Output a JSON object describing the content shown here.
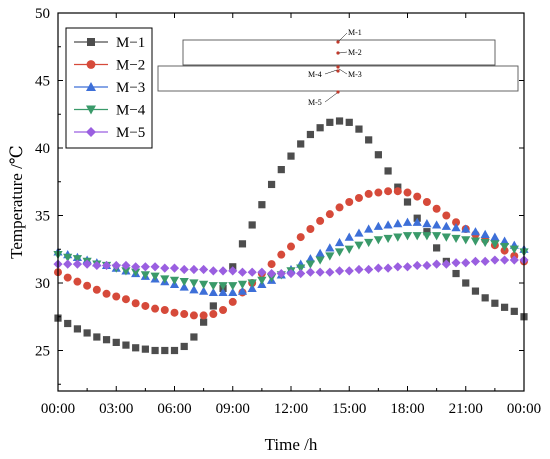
{
  "chart_data": {
    "type": "line",
    "title": "",
    "xlabel": "Time /h",
    "ylabel": "Temperature /℃",
    "x_tick_labels": [
      "00:00",
      "03:00",
      "06:00",
      "09:00",
      "12:00",
      "15:00",
      "18:00",
      "21:00",
      "00:00"
    ],
    "x_ticks": [
      0,
      3,
      6,
      9,
      12,
      15,
      18,
      21,
      24
    ],
    "y_ticks": [
      25,
      30,
      35,
      40,
      45,
      50
    ],
    "xlim": [
      0,
      24
    ],
    "ylim": [
      22,
      50
    ],
    "grid": false,
    "legend_position": "top-left",
    "series": [
      {
        "name": "M−1",
        "marker": "square",
        "color": "#4d4d4d",
        "points": [
          [
            0,
            27.4
          ],
          [
            0.5,
            27.0
          ],
          [
            1,
            26.6
          ],
          [
            1.5,
            26.3
          ],
          [
            2,
            26.0
          ],
          [
            2.5,
            25.8
          ],
          [
            3,
            25.6
          ],
          [
            3.5,
            25.4
          ],
          [
            4,
            25.2
          ],
          [
            4.5,
            25.1
          ],
          [
            5,
            25.0
          ],
          [
            5.5,
            25.0
          ],
          [
            6,
            25.0
          ],
          [
            6.5,
            25.3
          ],
          [
            7,
            26.0
          ],
          [
            7.5,
            27.1
          ],
          [
            8,
            28.3
          ],
          [
            8.5,
            29.6
          ],
          [
            9,
            31.2
          ],
          [
            9.5,
            32.9
          ],
          [
            10,
            34.3
          ],
          [
            10.5,
            35.8
          ],
          [
            11,
            37.3
          ],
          [
            11.5,
            38.4
          ],
          [
            12,
            39.4
          ],
          [
            12.5,
            40.3
          ],
          [
            13,
            41.0
          ],
          [
            13.5,
            41.5
          ],
          [
            14,
            41.9
          ],
          [
            14.5,
            42.0
          ],
          [
            15,
            41.9
          ],
          [
            15.5,
            41.4
          ],
          [
            16,
            40.6
          ],
          [
            16.5,
            39.5
          ],
          [
            17,
            38.3
          ],
          [
            17.5,
            37.1
          ],
          [
            18,
            36.0
          ],
          [
            18.5,
            34.8
          ],
          [
            19,
            33.8
          ],
          [
            19.5,
            32.6
          ],
          [
            20,
            31.6
          ],
          [
            20.5,
            30.7
          ],
          [
            21,
            30.0
          ],
          [
            21.5,
            29.4
          ],
          [
            22,
            28.9
          ],
          [
            22.5,
            28.5
          ],
          [
            23,
            28.2
          ],
          [
            23.5,
            27.9
          ],
          [
            24,
            27.5
          ]
        ]
      },
      {
        "name": "M−2",
        "marker": "circle",
        "color": "#d64a3a",
        "points": [
          [
            0,
            30.8
          ],
          [
            0.5,
            30.4
          ],
          [
            1,
            30.1
          ],
          [
            1.5,
            29.8
          ],
          [
            2,
            29.5
          ],
          [
            2.5,
            29.2
          ],
          [
            3,
            29.0
          ],
          [
            3.5,
            28.8
          ],
          [
            4,
            28.5
          ],
          [
            4.5,
            28.3
          ],
          [
            5,
            28.1
          ],
          [
            5.5,
            28.0
          ],
          [
            6,
            27.8
          ],
          [
            6.5,
            27.7
          ],
          [
            7,
            27.6
          ],
          [
            7.5,
            27.6
          ],
          [
            8,
            27.7
          ],
          [
            8.5,
            28.0
          ],
          [
            9,
            28.6
          ],
          [
            9.5,
            29.3
          ],
          [
            10,
            30.0
          ],
          [
            10.5,
            30.7
          ],
          [
            11,
            31.4
          ],
          [
            11.5,
            32.1
          ],
          [
            12,
            32.7
          ],
          [
            12.5,
            33.4
          ],
          [
            13,
            34.0
          ],
          [
            13.5,
            34.6
          ],
          [
            14,
            35.1
          ],
          [
            14.5,
            35.6
          ],
          [
            15,
            36.0
          ],
          [
            15.5,
            36.3
          ],
          [
            16,
            36.6
          ],
          [
            16.5,
            36.7
          ],
          [
            17,
            36.8
          ],
          [
            17.5,
            36.8
          ],
          [
            18,
            36.7
          ],
          [
            18.5,
            36.4
          ],
          [
            19,
            36.0
          ],
          [
            19.5,
            35.5
          ],
          [
            20,
            35.0
          ],
          [
            20.5,
            34.5
          ],
          [
            21,
            34.0
          ],
          [
            21.5,
            33.6
          ],
          [
            22,
            33.2
          ],
          [
            22.5,
            32.8
          ],
          [
            23,
            32.4
          ],
          [
            23.5,
            32.0
          ],
          [
            24,
            31.6
          ]
        ]
      },
      {
        "name": "M−3",
        "marker": "triangle-up",
        "color": "#3d6fd8",
        "points": [
          [
            0,
            32.3
          ],
          [
            0.5,
            32.1
          ],
          [
            1,
            31.9
          ],
          [
            1.5,
            31.7
          ],
          [
            2,
            31.5
          ],
          [
            2.5,
            31.3
          ],
          [
            3,
            31.1
          ],
          [
            3.5,
            30.9
          ],
          [
            4,
            30.7
          ],
          [
            4.5,
            30.5
          ],
          [
            5,
            30.3
          ],
          [
            5.5,
            30.1
          ],
          [
            6,
            29.9
          ],
          [
            6.5,
            29.7
          ],
          [
            7,
            29.5
          ],
          [
            7.5,
            29.4
          ],
          [
            8,
            29.3
          ],
          [
            8.5,
            29.3
          ],
          [
            9,
            29.3
          ],
          [
            9.5,
            29.4
          ],
          [
            10,
            29.6
          ],
          [
            10.5,
            29.9
          ],
          [
            11,
            30.2
          ],
          [
            11.5,
            30.6
          ],
          [
            12,
            31.0
          ],
          [
            12.5,
            31.4
          ],
          [
            13,
            31.8
          ],
          [
            13.5,
            32.2
          ],
          [
            14,
            32.6
          ],
          [
            14.5,
            33.0
          ],
          [
            15,
            33.4
          ],
          [
            15.5,
            33.7
          ],
          [
            16,
            34.0
          ],
          [
            16.5,
            34.2
          ],
          [
            17,
            34.3
          ],
          [
            17.5,
            34.4
          ],
          [
            18,
            34.5
          ],
          [
            18.5,
            34.5
          ],
          [
            19,
            34.4
          ],
          [
            19.5,
            34.3
          ],
          [
            20,
            34.2
          ],
          [
            20.5,
            34.1
          ],
          [
            21,
            34.0
          ],
          [
            21.5,
            33.8
          ],
          [
            22,
            33.6
          ],
          [
            22.5,
            33.4
          ],
          [
            23,
            33.1
          ],
          [
            23.5,
            32.8
          ],
          [
            24,
            32.5
          ]
        ]
      },
      {
        "name": "M−4",
        "marker": "triangle-down",
        "color": "#3a9a6a",
        "points": [
          [
            0,
            32.1
          ],
          [
            0.5,
            31.9
          ],
          [
            1,
            31.8
          ],
          [
            1.5,
            31.6
          ],
          [
            2,
            31.4
          ],
          [
            2.5,
            31.3
          ],
          [
            3,
            31.1
          ],
          [
            3.5,
            30.9
          ],
          [
            4,
            30.8
          ],
          [
            4.5,
            30.6
          ],
          [
            5,
            30.5
          ],
          [
            5.5,
            30.3
          ],
          [
            6,
            30.2
          ],
          [
            6.5,
            30.1
          ],
          [
            7,
            30.0
          ],
          [
            7.5,
            29.9
          ],
          [
            8,
            29.8
          ],
          [
            8.5,
            29.8
          ],
          [
            9,
            29.8
          ],
          [
            9.5,
            29.9
          ],
          [
            10,
            30.0
          ],
          [
            10.5,
            30.2
          ],
          [
            11,
            30.4
          ],
          [
            11.5,
            30.6
          ],
          [
            12,
            30.9
          ],
          [
            12.5,
            31.1
          ],
          [
            13,
            31.4
          ],
          [
            13.5,
            31.7
          ],
          [
            14,
            32.0
          ],
          [
            14.5,
            32.3
          ],
          [
            15,
            32.5
          ],
          [
            15.5,
            32.8
          ],
          [
            16,
            33.0
          ],
          [
            16.5,
            33.2
          ],
          [
            17,
            33.3
          ],
          [
            17.5,
            33.4
          ],
          [
            18,
            33.5
          ],
          [
            18.5,
            33.5
          ],
          [
            19,
            33.5
          ],
          [
            19.5,
            33.5
          ],
          [
            20,
            33.4
          ],
          [
            20.5,
            33.3
          ],
          [
            21,
            33.2
          ],
          [
            21.5,
            33.1
          ],
          [
            22,
            33.0
          ],
          [
            22.5,
            32.9
          ],
          [
            23,
            32.7
          ],
          [
            23.5,
            32.5
          ],
          [
            24,
            32.3
          ]
        ]
      },
      {
        "name": "M−5",
        "marker": "diamond",
        "color": "#9a5fe0",
        "points": [
          [
            0,
            31.4
          ],
          [
            0.5,
            31.4
          ],
          [
            1,
            31.4
          ],
          [
            1.5,
            31.4
          ],
          [
            2,
            31.3
          ],
          [
            2.5,
            31.3
          ],
          [
            3,
            31.3
          ],
          [
            3.5,
            31.3
          ],
          [
            4,
            31.2
          ],
          [
            4.5,
            31.2
          ],
          [
            5,
            31.2
          ],
          [
            5.5,
            31.1
          ],
          [
            6,
            31.1
          ],
          [
            6.5,
            31.0
          ],
          [
            7,
            31.0
          ],
          [
            7.5,
            31.0
          ],
          [
            8,
            30.9
          ],
          [
            8.5,
            30.9
          ],
          [
            9,
            30.9
          ],
          [
            9.5,
            30.8
          ],
          [
            10,
            30.8
          ],
          [
            10.5,
            30.8
          ],
          [
            11,
            30.7
          ],
          [
            11.5,
            30.7
          ],
          [
            12,
            30.7
          ],
          [
            12.5,
            30.7
          ],
          [
            13,
            30.8
          ],
          [
            13.5,
            30.8
          ],
          [
            14,
            30.8
          ],
          [
            14.5,
            30.9
          ],
          [
            15,
            30.9
          ],
          [
            15.5,
            31.0
          ],
          [
            16,
            31.0
          ],
          [
            16.5,
            31.1
          ],
          [
            17,
            31.1
          ],
          [
            17.5,
            31.2
          ],
          [
            18,
            31.2
          ],
          [
            18.5,
            31.3
          ],
          [
            19,
            31.3
          ],
          [
            19.5,
            31.4
          ],
          [
            20,
            31.4
          ],
          [
            20.5,
            31.5
          ],
          [
            21,
            31.5
          ],
          [
            21.5,
            31.6
          ],
          [
            22,
            31.6
          ],
          [
            22.5,
            31.7
          ],
          [
            23,
            31.7
          ],
          [
            23.5,
            31.7
          ],
          [
            24,
            31.7
          ]
        ]
      }
    ],
    "inset_diagram_labels": [
      "M-1",
      "M-2",
      "M-4",
      "M-3",
      "M-5"
    ]
  }
}
